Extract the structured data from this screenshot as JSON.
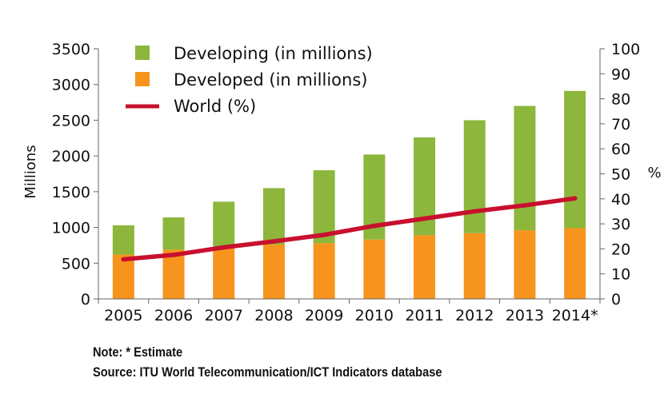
{
  "chart_data": {
    "type": "bar",
    "stacked": true,
    "categories": [
      "2005",
      "2006",
      "2007",
      "2008",
      "2009",
      "2010",
      "2011",
      "2012",
      "2013",
      "2014*"
    ],
    "series": [
      {
        "name": "Developed (in millions)",
        "values": [
          620,
          690,
          720,
          760,
          780,
          830,
          890,
          920,
          960,
          990
        ],
        "color": "#F7941D"
      },
      {
        "name": "Developing (in millions)",
        "values": [
          410,
          450,
          640,
          790,
          1020,
          1190,
          1370,
          1580,
          1740,
          1920
        ],
        "color": "#8DB63C"
      }
    ],
    "line": {
      "name": "World (%)",
      "axis": "right",
      "values": [
        15.8,
        17.6,
        20.6,
        23.0,
        25.6,
        29.2,
        32.1,
        35.0,
        37.4,
        40.2
      ],
      "color": "#C8102E"
    },
    "ylabel": "Millions",
    "y2label": "%",
    "ylim": [
      0,
      3500
    ],
    "y2lim": [
      0,
      100
    ],
    "yticks": [
      "0",
      "500",
      "1000",
      "1500",
      "2000",
      "2500",
      "3000",
      "3500"
    ],
    "y2ticks": [
      "0",
      "10",
      "20",
      "30",
      "40",
      "50",
      "60",
      "70",
      "80",
      "90",
      "100"
    ],
    "legend": [
      "Developing (in millions)",
      "Developed (in millions)",
      "World (%)"
    ],
    "legend_position": "top-left",
    "grid": false
  },
  "notes": {
    "note": "Note: * Estimate",
    "source": "Source: ITU World Telecommunication/ICT Indicators database"
  }
}
